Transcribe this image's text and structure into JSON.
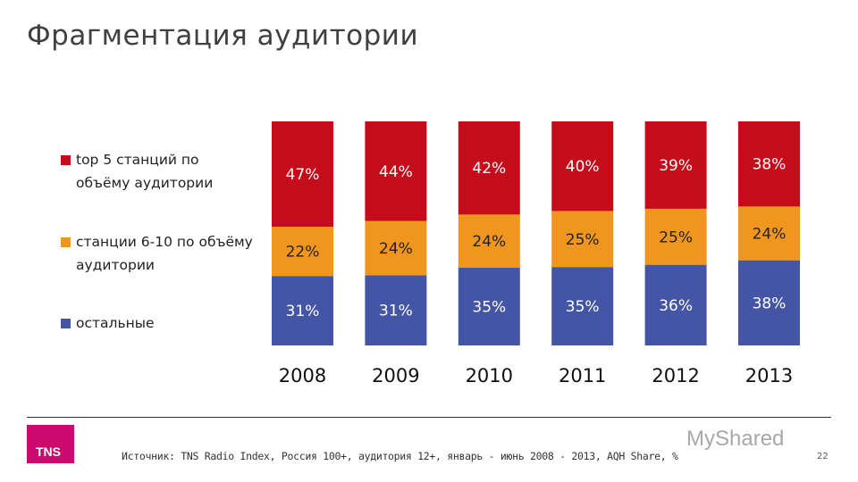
{
  "title": "Фрагментация аудитории",
  "chart_data": {
    "type": "bar",
    "stacked": true,
    "normalized": true,
    "categories": [
      "2008",
      "2009",
      "2010",
      "2011",
      "2012",
      "2013"
    ],
    "series": [
      {
        "name": "остальные",
        "color": "#4455a6",
        "values": [
          31,
          31,
          35,
          35,
          36,
          38
        ]
      },
      {
        "name": "станции 6-10 по объёму аудитории",
        "color": "#f0961e",
        "values": [
          22,
          24,
          24,
          25,
          25,
          24
        ]
      },
      {
        "name": "top 5 станций по объёму аудитории",
        "color": "#c50c1a",
        "values": [
          47,
          44,
          42,
          40,
          39,
          38
        ]
      }
    ],
    "data_label_format": "{v}%",
    "legend_position": "left",
    "grid": false,
    "ylim": [
      0,
      100
    ]
  },
  "legend": [
    {
      "label": "top 5 станций по объёму аудитории",
      "color": "#c50c1a"
    },
    {
      "label": "станции 6-10 по объёму аудитории",
      "color": "#f0961e"
    },
    {
      "label": "остальные",
      "color": "#4455a6"
    }
  ],
  "footer": {
    "logo": "TNS",
    "source": "Источник: TNS Radio Index, Россия 100+, аудитория 12+, январь - июнь 2008 - 2013, AQH Share, %",
    "page_number": "22",
    "watermark": "MyShared"
  }
}
